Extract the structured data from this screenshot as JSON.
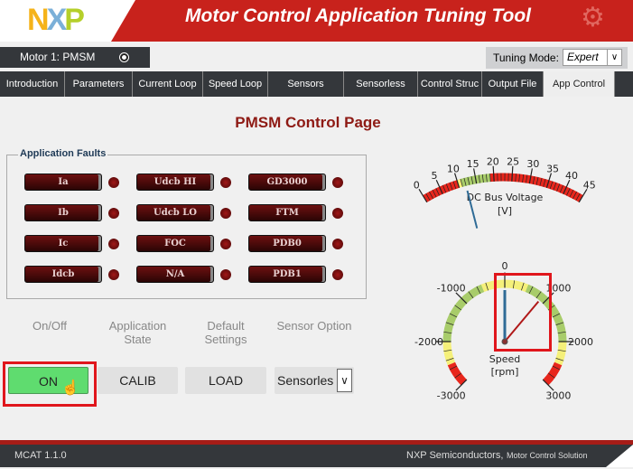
{
  "header": {
    "logo": "NXP",
    "title": "Motor Control Application Tuning Tool"
  },
  "motor": {
    "label": "Motor  1:  PMSM"
  },
  "tuning": {
    "label": "Tuning Mode:",
    "value": "Expert"
  },
  "tabs": [
    "Introduction",
    "Parameters",
    "Current Loop",
    "Speed Loop",
    "Sensors",
    "Sensorless",
    "Control Struc",
    "Output File",
    "App Control"
  ],
  "active_tab": "App Control",
  "page_title": "PMSM Control Page",
  "faults": {
    "legend": "Application Faults",
    "items": [
      "Ia",
      "Udcb HI",
      "GD3000",
      "Ib",
      "Udcb LO",
      "FTM",
      "Ic",
      "FOC",
      "PDB0",
      "Idcb",
      "N/A",
      "PDB1"
    ]
  },
  "controls": {
    "labels": [
      "On/Off",
      "Application\nState",
      "Default\nSettings",
      "Sensor Option"
    ],
    "on": "ON",
    "calib": "CALIB",
    "load": "LOAD",
    "sensor_value": "Sensorles"
  },
  "voltage_gauge": {
    "label": "DC Bus Voltage",
    "unit": "[V]",
    "min": 0,
    "max": 45,
    "ticks": [
      0,
      5,
      10,
      15,
      20,
      25,
      30,
      35,
      40,
      45
    ],
    "value": 12,
    "zones": [
      [
        0,
        10,
        "#e8261c"
      ],
      [
        10,
        11,
        "#f5f07a"
      ],
      [
        11,
        19,
        "#a8cc6a"
      ],
      [
        19,
        45,
        "#e8261c"
      ]
    ]
  },
  "speed_gauge": {
    "label": "Speed",
    "unit": "[rpm]",
    "min": -3000,
    "max": 3000,
    "ticks": [
      -3000,
      -2000,
      -1000,
      0,
      1000,
      2000,
      3000
    ],
    "actual": 0,
    "required": 890,
    "zones": [
      [
        -3000,
        -2500,
        "#e8261c"
      ],
      [
        -2500,
        -2000,
        "#f5f07a"
      ],
      [
        -2000,
        -500,
        "#a8cc6a"
      ],
      [
        -500,
        500,
        "#f5f07a"
      ],
      [
        500,
        2000,
        "#a8cc6a"
      ],
      [
        2000,
        2500,
        "#f5f07a"
      ],
      [
        2500,
        3000,
        "#e8261c"
      ]
    ]
  },
  "footer": {
    "version": "MCAT 1.1.0",
    "company": "NXP Semiconductors,",
    "product": "Motor Control Solution"
  }
}
